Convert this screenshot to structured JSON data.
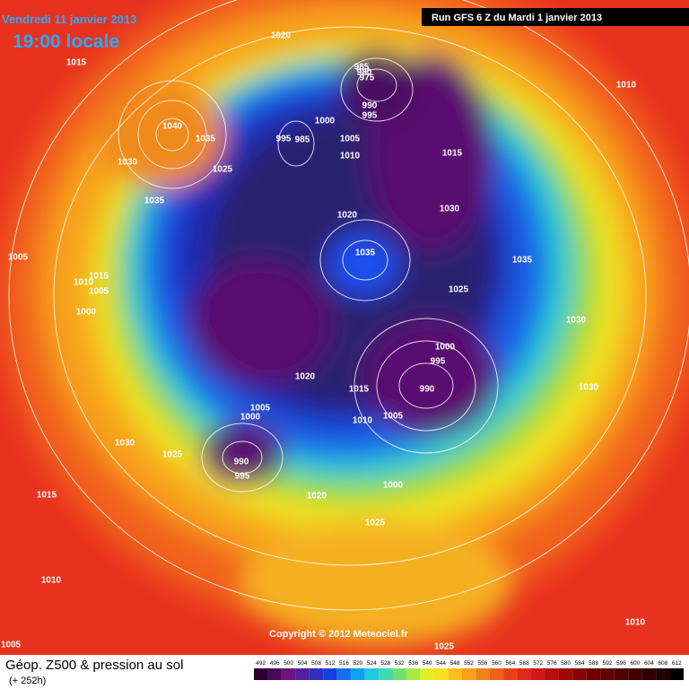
{
  "header": {
    "date": "Vendredi 11 janvier 2013",
    "time": "19:00 locale",
    "run": "Run GFS 6 Z du Mardi 1 janvier 2013"
  },
  "footer": {
    "title": "Géop. Z500 & pression au sol",
    "lead": "(+ 252h)",
    "copyright": "Copyright © 2012 Meteociel.fr"
  },
  "legend": {
    "ticks": [
      492,
      496,
      500,
      504,
      508,
      512,
      516,
      520,
      524,
      528,
      532,
      536,
      540,
      544,
      548,
      552,
      556,
      560,
      564,
      568,
      572,
      576,
      580,
      584,
      588,
      592,
      596,
      600,
      604,
      608,
      612
    ]
  },
  "isobar_labels": [
    "1020",
    "1015",
    "1010",
    "985",
    "980",
    "975",
    "990",
    "995",
    "1040",
    "1035",
    "1000",
    "995",
    "985",
    "1005",
    "1030",
    "1025",
    "1015",
    "1010",
    "1035",
    "1020",
    "1030",
    "1035",
    "1005",
    "1035",
    "1015",
    "1010",
    "1005",
    "1025",
    "1000",
    "1030",
    "1000",
    "995",
    "1020",
    "990",
    "1030",
    "1015",
    "1005",
    "1000",
    "1005",
    "1010",
    "1030",
    "1025",
    "990",
    "995",
    "1000",
    "1020",
    "1015",
    "1025",
    "1010",
    "1010",
    "1005",
    "1025"
  ]
}
